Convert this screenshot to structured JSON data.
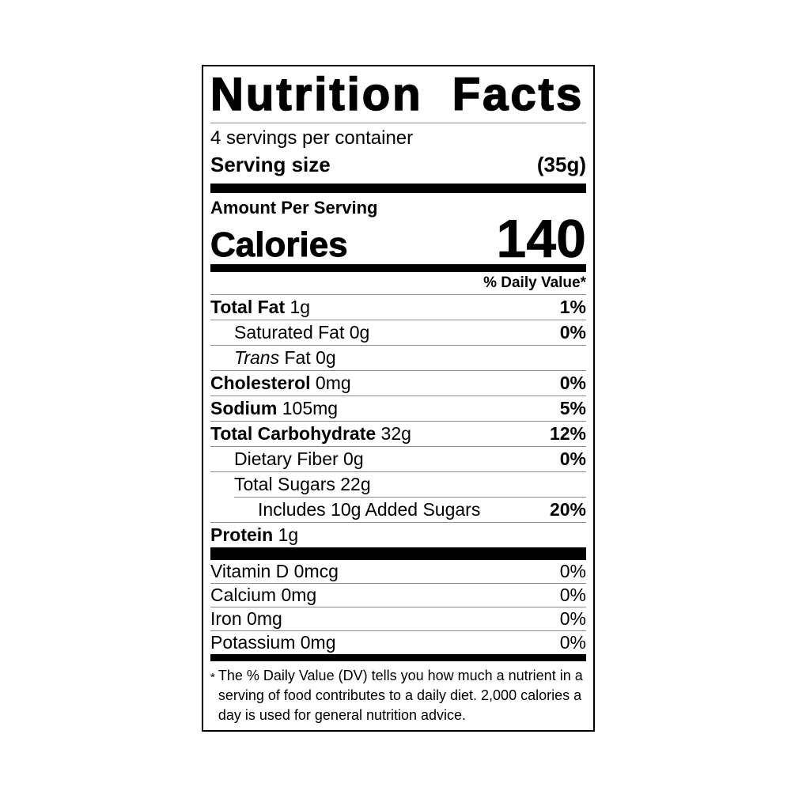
{
  "label": {
    "title": "Nutrition Facts",
    "servings_per_container": "4 servings per container",
    "serving_size_label": "Serving size",
    "serving_size_value": "(35g)",
    "amount_per_serving": "Amount Per Serving",
    "calories_label": "Calories",
    "calories_value": "140",
    "daily_value_header": "% Daily Value*",
    "nutrients": [
      {
        "name": "Total Fat",
        "name_style": "bold",
        "amount": "1g",
        "dv": "1%",
        "dv_bold": true,
        "indent": 0,
        "divider_indent": false
      },
      {
        "name": "Saturated Fat",
        "name_style": "regular",
        "amount": "0g",
        "dv": "0%",
        "dv_bold": true,
        "indent": 1,
        "divider_indent": false
      },
      {
        "name": "Trans",
        "name_style": "italic",
        "amount": "Fat 0g",
        "dv": "",
        "dv_bold": false,
        "indent": 1,
        "divider_indent": false
      },
      {
        "name": "Cholesterol",
        "name_style": "bold",
        "amount": "0mg",
        "dv": "0%",
        "dv_bold": true,
        "indent": 0,
        "divider_indent": false
      },
      {
        "name": "Sodium",
        "name_style": "bold",
        "amount": "105mg",
        "dv": "5%",
        "dv_bold": true,
        "indent": 0,
        "divider_indent": false
      },
      {
        "name": "Total Carbohydrate",
        "name_style": "bold",
        "amount": "32g",
        "dv": "12%",
        "dv_bold": true,
        "indent": 0,
        "divider_indent": false
      },
      {
        "name": "Dietary Fiber",
        "name_style": "regular",
        "amount": "0g",
        "dv": "0%",
        "dv_bold": true,
        "indent": 1,
        "divider_indent": false
      },
      {
        "name": "Total Sugars",
        "name_style": "regular",
        "amount": "22g",
        "dv": "",
        "dv_bold": false,
        "indent": 1,
        "divider_indent": false
      },
      {
        "name": "Includes 10g Added Sugars",
        "name_style": "regular",
        "amount": "",
        "dv": "20%",
        "dv_bold": true,
        "indent": 2,
        "divider_indent": true
      },
      {
        "name": "Protein",
        "name_style": "bold",
        "amount": "1g",
        "dv": "",
        "dv_bold": false,
        "indent": 0,
        "divider_indent": false
      }
    ],
    "vitamins": [
      {
        "name": "Vitamin D",
        "amount": "0mcg",
        "dv": "0%"
      },
      {
        "name": "Calcium",
        "amount": "0mg",
        "dv": "0%"
      },
      {
        "name": "Iron",
        "amount": "0mg",
        "dv": "0%"
      },
      {
        "name": "Potassium",
        "amount": "0mg",
        "dv": "0%"
      }
    ],
    "footnote_symbol": "*",
    "footnote": "The % Daily Value (DV) tells you how much a nutrient in a serving of food contributes to a daily diet. 2,000 calories a day is used for general nutrition advice."
  },
  "colors": {
    "text": "#000000",
    "background": "#ffffff",
    "rule": "#000000",
    "hairline": "#8a8a8a"
  }
}
